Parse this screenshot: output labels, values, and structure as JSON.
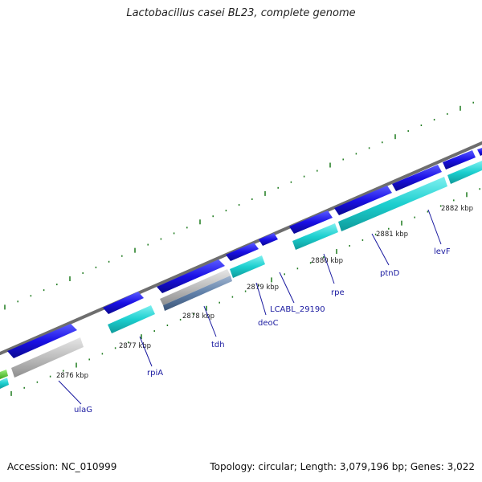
{
  "title": "Lactobacillus casei BL23, complete genome",
  "footer": {
    "accession": "Accession: NC_010999",
    "summary": "Topology: circular; Length: 3,079,196 bp; Genes: 3,022"
  },
  "ticks": {
    "labels": [
      "2876 kbp",
      "2877 kbp",
      "2878 kbp",
      "2879 kbp",
      "2880 kbp",
      "2881 kbp",
      "2882 kbp"
    ]
  },
  "genes": [
    {
      "name": "ulaG"
    },
    {
      "name": "rpiA"
    },
    {
      "name": "tdh"
    },
    {
      "name": "deoC"
    },
    {
      "name": "LCABL_29190"
    },
    {
      "name": "rpe"
    },
    {
      "name": "ptnD"
    },
    {
      "name": "levF"
    }
  ],
  "colors": {
    "backbone": "#7f7f7f",
    "gene": "#1a10e6",
    "cds": "#1ccfcf",
    "pseudo": "#bdbdbd",
    "tick": "#1d7a1d",
    "label": "#1a1aa0",
    "leader": "#1a1aa0"
  }
}
